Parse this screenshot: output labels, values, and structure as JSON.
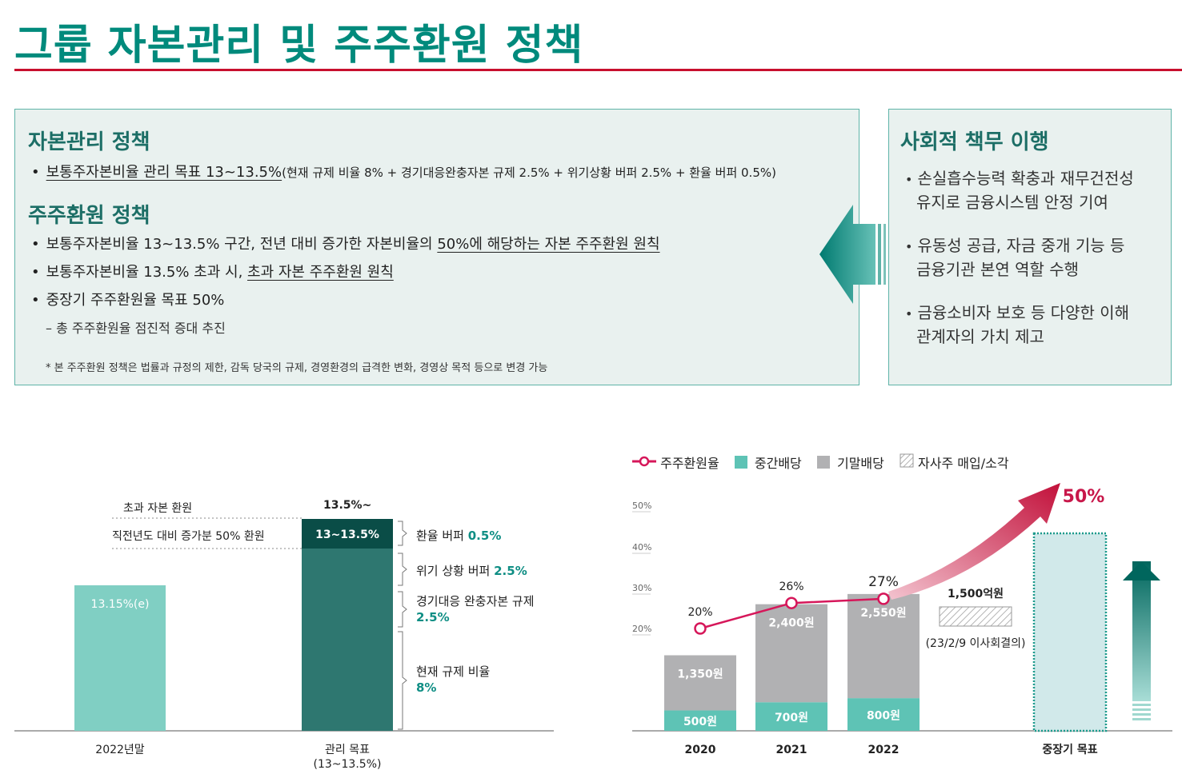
{
  "title": "그룹 자본관리 및 주주환원 정책",
  "capital_policy": {
    "heading": "자본관리 정책",
    "bullet": {
      "main": "보통주자본비율 관리 목표 13~13.5%",
      "detail": "(현재 규제 비율 8% + 경기대응완충자본 규제 2.5% + 위기상황 버퍼 2.5% + 환율 버퍼 0.5%)"
    }
  },
  "shareholder_policy": {
    "heading": "주주환원 정책",
    "b1_pre": "보통주자본비율 13~13.5% 구간, 전년 대비 증가한 자본비율의 ",
    "b1_u": "50%에 해당하는 자본 주주환원 원칙",
    "b2_pre": "보통주자본비율 13.5% 초과 시, ",
    "b2_u": "초과 자본 주주환원 원칙",
    "b3": "중장기 주주환원율 목표 50%",
    "b3_sub": "– 총 주주환원율 점진적 증대 추진",
    "note": "* 본 주주환원 정책은 법률과 규정의 제한, 감독 당국의 규제, 경영환경의 급격한 변화, 경영상 목적 등으로 변경 가능"
  },
  "social": {
    "heading": "사회적 책무 이행",
    "items": [
      [
        "손실흡수능력 확충과 재무건전성",
        "유지로 금융시스템 안정 기여"
      ],
      [
        "유동성 공급, 자금 중개 기능 등",
        "금융기관 본연 역할 수행"
      ],
      [
        "금융소비자 보호 등 다양한 이해",
        "관계자의 가치 제고"
      ]
    ]
  },
  "chart_data": [
    {
      "type": "bar",
      "categories": [
        "2022년말",
        "관리 목표"
      ],
      "category_sublabels": [
        "",
        "(13~13.5%)"
      ],
      "values": [
        13.15,
        13.5
      ],
      "bar_labels": [
        "13.15%(e)",
        "13~13.5%"
      ],
      "top_label": "13.5%~",
      "row_labels": [
        "초과 자본 환원",
        "직전년도 대비 증가분 50% 환원"
      ],
      "components": [
        {
          "name": "환율 버퍼",
          "value": "0.5%"
        },
        {
          "name": "위기 상황 버퍼",
          "value": "2.5%"
        },
        {
          "name": "경기대응 완충자본 규제",
          "value": "2.5%"
        },
        {
          "name": "현재 규제 비율",
          "value": "8%"
        }
      ],
      "ylim": [
        0,
        14
      ]
    },
    {
      "type": "bar",
      "legend": [
        "주주환원율",
        "중간배당",
        "기말배당",
        "자사주 매입/소각"
      ],
      "categories": [
        "2020",
        "2021",
        "2022",
        "중장기 목표"
      ],
      "series": [
        {
          "name": "중간배당",
          "values": [
            500,
            700,
            800,
            null
          ],
          "labels": [
            "500원",
            "700원",
            "800원",
            ""
          ]
        },
        {
          "name": "기말배당",
          "values": [
            1350,
            2400,
            2550,
            null
          ],
          "labels": [
            "1,350원",
            "2,400원",
            "2,550원",
            ""
          ]
        },
        {
          "name": "주주환원율",
          "values": [
            20,
            26,
            27,
            50
          ],
          "labels": [
            "20%",
            "26%",
            "27%",
            "50%"
          ]
        }
      ],
      "buyback": {
        "label": "1,500억원",
        "note": "(23/2/9 이사회결의)"
      },
      "yticks": [
        "50%",
        "40%",
        "30%",
        "20%"
      ],
      "colors": {
        "interim": "#5ec3b5",
        "final": "#b1b1b3",
        "line": "#d6175a",
        "target": "#d1e9ea",
        "target_border": "#1c9a8c"
      }
    }
  ]
}
